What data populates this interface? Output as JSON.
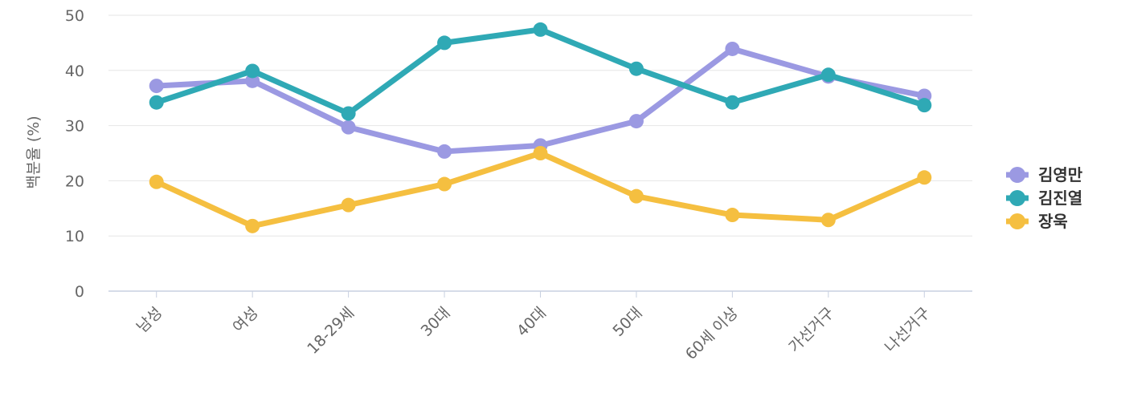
{
  "chart_data": {
    "type": "line",
    "title": "",
    "xlabel": "",
    "ylabel": "백분율 (%)",
    "ylim": [
      0,
      50
    ],
    "yticks": [
      0,
      10,
      20,
      30,
      40,
      50
    ],
    "categories": [
      "남성",
      "여성",
      "18-29세",
      "30대",
      "40대",
      "50대",
      "60세 이상",
      "가선거구",
      "나선거구"
    ],
    "series": [
      {
        "name": "김영만",
        "color": "#9b99e2",
        "values": [
          37.2,
          38.1,
          29.7,
          25.3,
          26.4,
          30.8,
          43.9,
          38.9,
          35.4
        ]
      },
      {
        "name": "김진열",
        "color": "#2fa9b5",
        "values": [
          34.2,
          39.9,
          32.2,
          45.0,
          47.4,
          40.3,
          34.2,
          39.2,
          33.7
        ]
      },
      {
        "name": "장욱",
        "color": "#f5bf40",
        "values": [
          19.8,
          11.8,
          15.6,
          19.4,
          25.0,
          17.2,
          13.8,
          12.9,
          20.6
        ]
      }
    ],
    "grid": true,
    "legend": "right"
  }
}
